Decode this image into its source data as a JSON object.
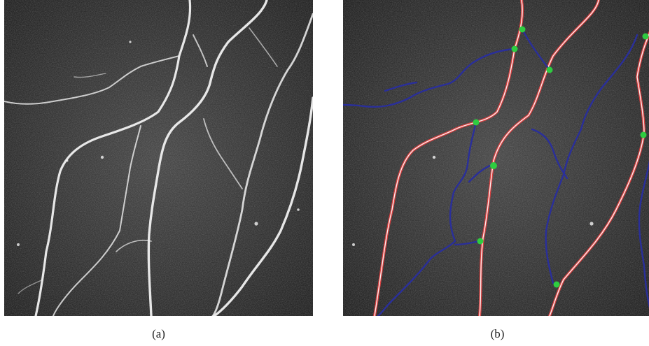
{
  "figure": {
    "captions": {
      "a": "(a)",
      "b": "(b)"
    },
    "colors": {
      "background": "#3c3c3c",
      "nerve": "#f2f2f2",
      "main_trunk_trace": "#d84040",
      "branch_trace": "#2a2f9a",
      "branch_point": "#2ecc40"
    }
  }
}
